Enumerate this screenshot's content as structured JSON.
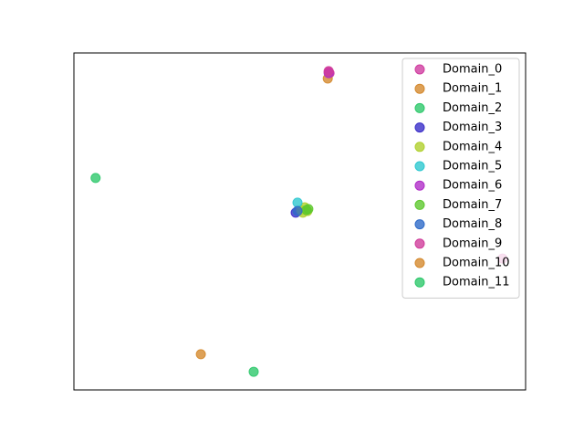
{
  "chart_data": {
    "type": "scatter",
    "xlim": [
      0,
      1
    ],
    "ylim": [
      0,
      1
    ],
    "xticks": [],
    "yticks": [],
    "grid": false,
    "legend": "upper right",
    "series": [
      {
        "name": "Domain_0",
        "color": "#d03da0",
        "x": [
          0.564,
          0.566
        ],
        "y": [
          0.943,
          0.94
        ]
      },
      {
        "name": "Domain_1",
        "color": "#d4892e",
        "x": [
          0.562
        ],
        "y": [
          0.924
        ]
      },
      {
        "name": "Domain_2",
        "color": "#2ec86b",
        "x": [
          0.048
        ],
        "y": [
          0.629
        ]
      },
      {
        "name": "Domain_3",
        "color": "#3a2ec8",
        "x": [
          0.491
        ],
        "y": [
          0.526
        ]
      },
      {
        "name": "Domain_4",
        "color": "#b0d02e",
        "x": [
          0.503,
          0.511,
          0.517,
          0.507
        ],
        "y": [
          0.534,
          0.542,
          0.531,
          0.526
        ]
      },
      {
        "name": "Domain_5",
        "color": "#2ec8d0",
        "x": [
          0.495
        ],
        "y": [
          0.556
        ]
      },
      {
        "name": "Domain_6",
        "color": "#b02ec8",
        "x": [
          0.564
        ],
        "y": [
          0.94
        ]
      },
      {
        "name": "Domain_7",
        "color": "#5ec82e",
        "x": [
          0.515,
          0.519
        ],
        "y": [
          0.534,
          0.537
        ]
      },
      {
        "name": "Domain_8",
        "color": "#2e6ac8",
        "x": [
          0.495
        ],
        "y": [
          0.531
        ]
      },
      {
        "name": "Domain_9",
        "color": "#d03d9b",
        "x": [
          0.564,
          0.949
        ],
        "y": [
          0.946,
          0.39
        ]
      },
      {
        "name": "Domain_10",
        "color": "#d4892e",
        "x": [
          0.281
        ],
        "y": [
          0.106
        ]
      },
      {
        "name": "Domain_11",
        "color": "#2ec86b",
        "x": [
          0.398
        ],
        "y": [
          0.054
        ]
      }
    ]
  }
}
